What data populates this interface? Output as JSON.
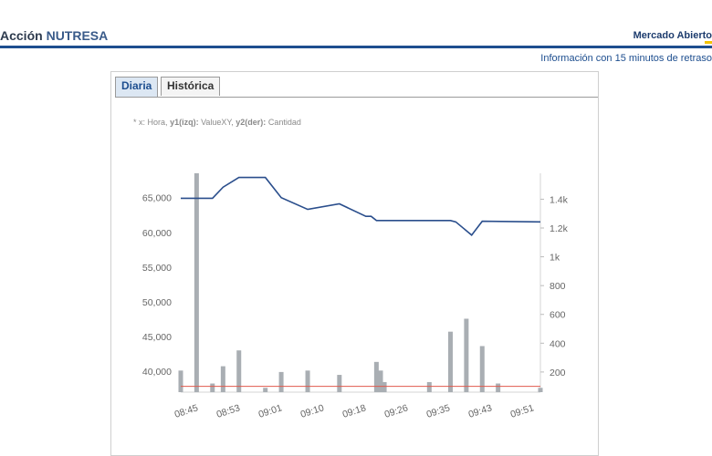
{
  "header": {
    "title_prefix": "Acción",
    "title_symbol": "NUTRESA",
    "market_status": "Mercado Abierto",
    "delay_note": "Información con 15 minutos de retraso"
  },
  "tabs": [
    {
      "label": "Diaria",
      "active": true
    },
    {
      "label": "Histórica",
      "active": false
    }
  ],
  "legend": {
    "prefix": "* x:",
    "x_desc": "Hora,",
    "y1_key": "y1(izq):",
    "y1_desc": "ValueXY,",
    "y2_key": "y2(der):",
    "y2_desc": "Cantidad"
  },
  "chart_data": {
    "type": "line",
    "x_ticks": [
      "08:45",
      "08:53",
      "09:01",
      "09:10",
      "09:18",
      "09:26",
      "09:35",
      "09:43",
      "09:51"
    ],
    "y1_ticks": [
      "40,000",
      "45,000",
      "50,000",
      "55,000",
      "60,000",
      "65,000"
    ],
    "y2_ticks": [
      "200",
      "400",
      "600",
      "800",
      "1k",
      "1.2k",
      "1.4k"
    ],
    "y1_range": [
      37000,
      68500
    ],
    "y2_range": [
      60,
      1580
    ],
    "x_range": [
      0,
      68
    ],
    "price": [
      [
        0,
        64900
      ],
      [
        6,
        64900
      ],
      [
        8,
        66500
      ],
      [
        11,
        67900
      ],
      [
        16,
        67900
      ],
      [
        19,
        65000
      ],
      [
        24,
        63300
      ],
      [
        30,
        64100
      ],
      [
        35,
        62300
      ],
      [
        36,
        62300
      ],
      [
        37,
        61700
      ],
      [
        51,
        61700
      ],
      [
        52,
        61500
      ],
      [
        55,
        59600
      ],
      [
        57,
        61600
      ],
      [
        68,
        61500
      ]
    ],
    "volume": [
      [
        0,
        210
      ],
      [
        3,
        1580
      ],
      [
        6,
        120
      ],
      [
        8,
        240
      ],
      [
        11,
        350
      ],
      [
        16,
        90
      ],
      [
        19,
        200
      ],
      [
        24,
        210
      ],
      [
        30,
        180
      ],
      [
        37,
        270
      ],
      [
        37.8,
        210
      ],
      [
        38.5,
        130
      ],
      [
        47,
        130
      ],
      [
        51,
        480
      ],
      [
        54,
        570
      ],
      [
        57,
        380
      ],
      [
        60,
        120
      ],
      [
        68,
        90
      ]
    ],
    "reference_line_y2": 100,
    "colors": {
      "price": "#2a4e8c",
      "volume": "#a9aeb3",
      "reference": "#e05a4e"
    }
  }
}
